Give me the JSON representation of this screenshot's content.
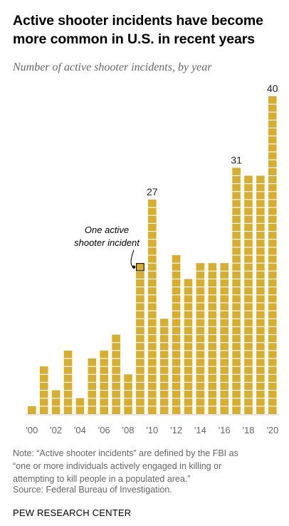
{
  "title": "Active shooter incidents have become more common in U.S. in recent years",
  "subtitle": "Number of active shooter incidents, by year",
  "annotation": {
    "lines": [
      "One active",
      "shooter incident"
    ]
  },
  "note_lines": [
    "Note: “Active shooter incidents” are defined by the FBI as",
    "“one or more individuals actively engaged in killing or",
    "attempting to kill people in a populated area.”"
  ],
  "source": "Source: Federal Bureau of Investigation.",
  "brand": "PEW RESEARCH CENTER",
  "colors": {
    "bar": "#d8ae31",
    "grid_line": "#ffffff",
    "highlight_border": "#000000",
    "axis_text": "#666666"
  },
  "chart_data": {
    "type": "bar",
    "title": "Active shooter incidents have become more common in U.S. in recent years",
    "subtitle": "Number of active shooter incidents, by year",
    "x": [
      2000,
      2001,
      2002,
      2003,
      2004,
      2005,
      2006,
      2007,
      2008,
      2009,
      2010,
      2011,
      2012,
      2013,
      2014,
      2015,
      2016,
      2017,
      2018,
      2019,
      2020
    ],
    "values": [
      1,
      6,
      3,
      8,
      2,
      7,
      8,
      10,
      5,
      19,
      27,
      12,
      20,
      17,
      19,
      19,
      19,
      31,
      30,
      30,
      40
    ],
    "tick_labels": [
      "'00",
      "'02",
      "'04",
      "'06",
      "'08",
      "'10",
      "'12",
      "'14",
      "'16",
      "'18",
      "'20"
    ],
    "tick_years": [
      2000,
      2002,
      2004,
      2006,
      2008,
      2010,
      2012,
      2014,
      2016,
      2018,
      2020
    ],
    "data_labels": [
      {
        "year": 2010,
        "label": "27"
      },
      {
        "year": 2017,
        "label": "31"
      },
      {
        "year": 2020,
        "label": "40"
      }
    ],
    "highlight": {
      "year": 2009,
      "unit": 19
    },
    "grid": false,
    "legend": "none"
  }
}
